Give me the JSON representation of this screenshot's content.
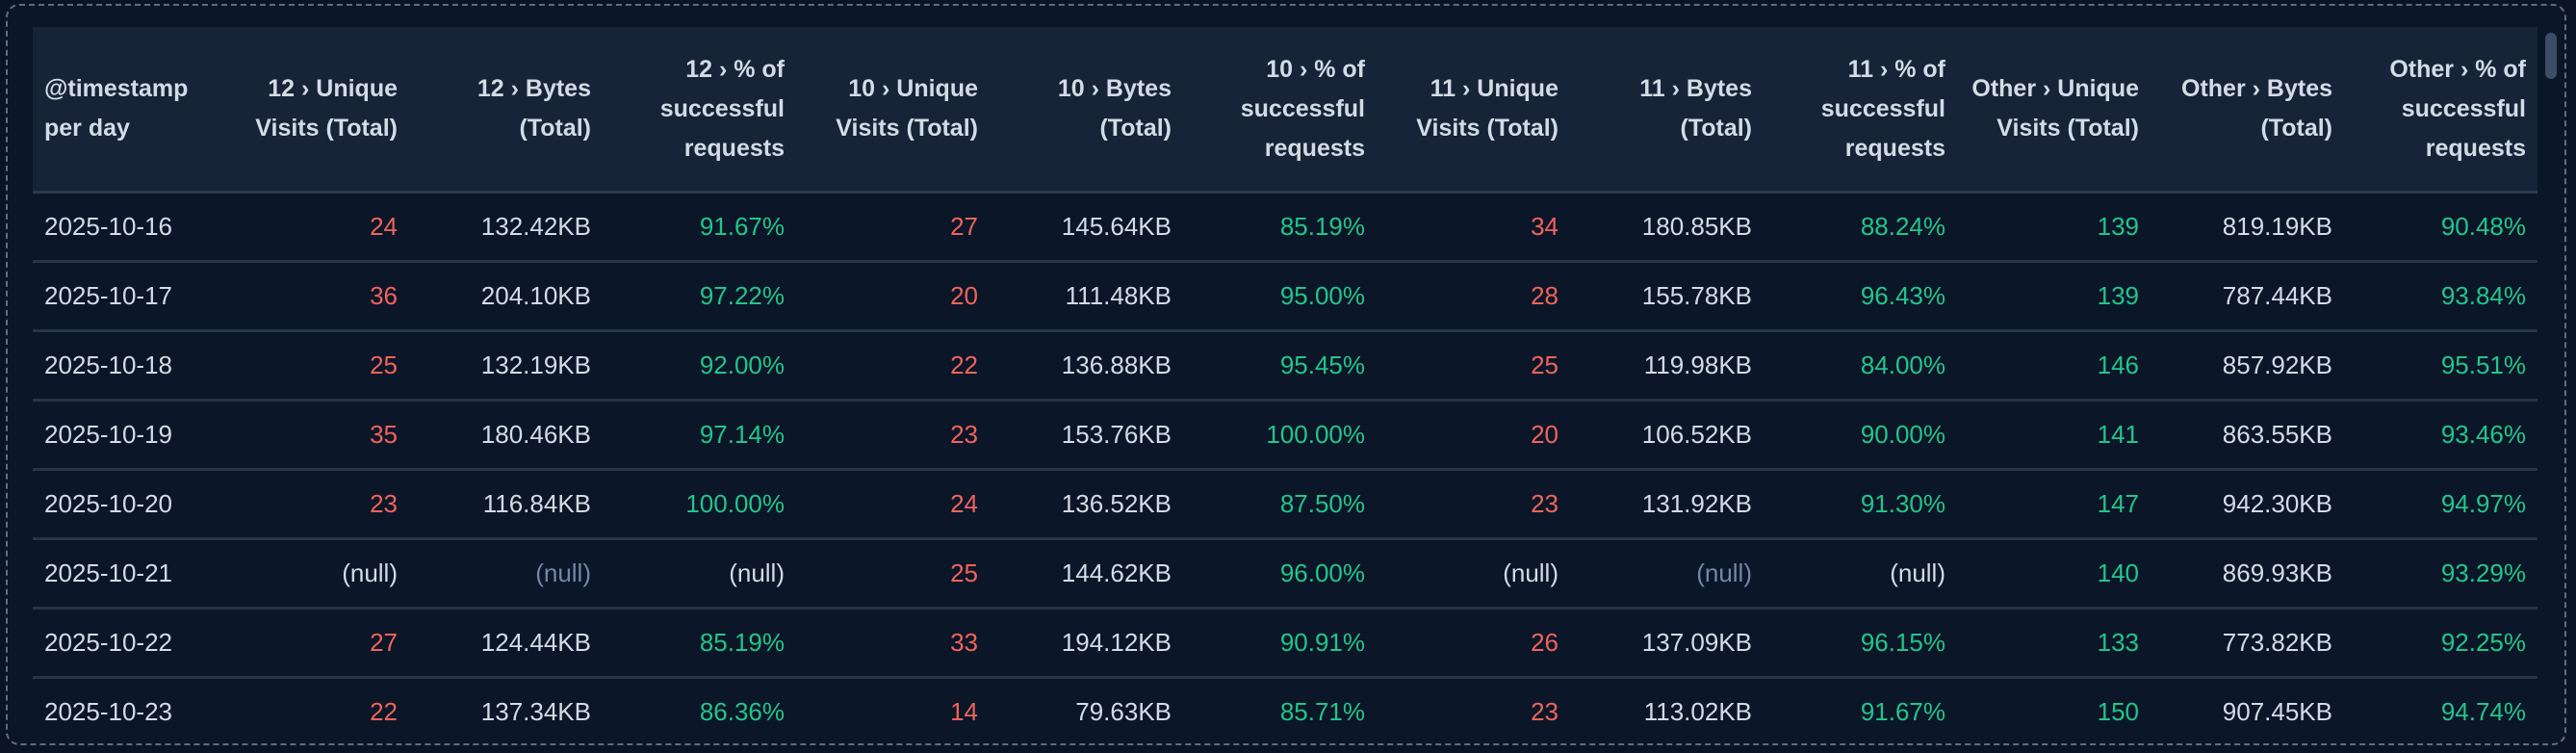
{
  "columns": [
    "@timestamp per day",
    "12 › Unique Visits (Total)",
    "12 › Bytes (Total)",
    "12 › % of successful requests",
    "10 › Unique Visits (Total)",
    "10 › Bytes (Total)",
    "10 › % of successful requests",
    "11 › Unique Visits (Total)",
    "11 › Bytes (Total)",
    "11 › % of successful requests",
    "Other › Unique Visits (Total)",
    "Other › Bytes (Total)",
    "Other › % of successful requests"
  ],
  "colors": {
    "background": "#0b1628",
    "header": "#172336",
    "text": "#d3dbe7",
    "low_value": "#f0635b",
    "good_value": "#22c58b",
    "null_muted": "#7686a6"
  },
  "rows": [
    [
      "2025-10-16",
      "24",
      "132.42KB",
      "91.67%",
      "27",
      "145.64KB",
      "85.19%",
      "34",
      "180.85KB",
      "88.24%",
      "139",
      "819.19KB",
      "90.48%"
    ],
    [
      "2025-10-17",
      "36",
      "204.10KB",
      "97.22%",
      "20",
      "111.48KB",
      "95.00%",
      "28",
      "155.78KB",
      "96.43%",
      "139",
      "787.44KB",
      "93.84%"
    ],
    [
      "2025-10-18",
      "25",
      "132.19KB",
      "92.00%",
      "22",
      "136.88KB",
      "95.45%",
      "25",
      "119.98KB",
      "84.00%",
      "146",
      "857.92KB",
      "95.51%"
    ],
    [
      "2025-10-19",
      "35",
      "180.46KB",
      "97.14%",
      "23",
      "153.76KB",
      "100.00%",
      "20",
      "106.52KB",
      "90.00%",
      "141",
      "863.55KB",
      "93.46%"
    ],
    [
      "2025-10-20",
      "23",
      "116.84KB",
      "100.00%",
      "24",
      "136.52KB",
      "87.50%",
      "23",
      "131.92KB",
      "91.30%",
      "147",
      "942.30KB",
      "94.97%"
    ],
    [
      "2025-10-21",
      "(null)",
      "(null)",
      "(null)",
      "25",
      "144.62KB",
      "96.00%",
      "(null)",
      "(null)",
      "(null)",
      "140",
      "869.93KB",
      "93.29%"
    ],
    [
      "2025-10-22",
      "27",
      "124.44KB",
      "85.19%",
      "33",
      "194.12KB",
      "90.91%",
      "26",
      "137.09KB",
      "96.15%",
      "133",
      "773.82KB",
      "92.25%"
    ],
    [
      "2025-10-23",
      "22",
      "137.34KB",
      "86.36%",
      "14",
      "79.63KB",
      "85.71%",
      "23",
      "113.02KB",
      "91.67%",
      "150",
      "907.45KB",
      "94.74%"
    ]
  ]
}
